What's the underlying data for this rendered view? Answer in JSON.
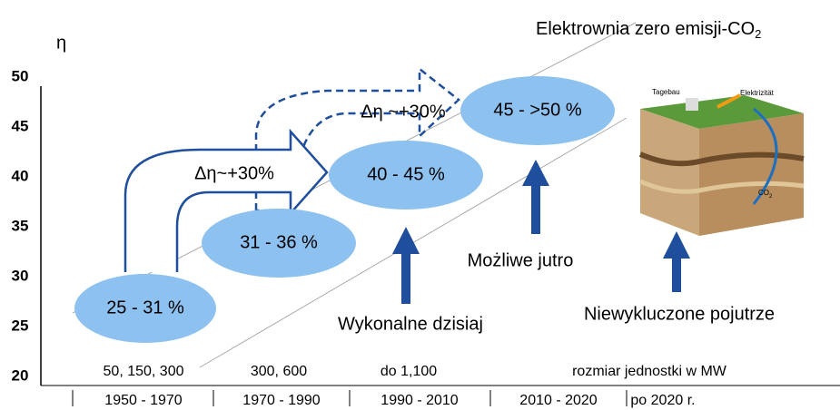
{
  "axis": {
    "label": "η",
    "ticks": [
      "50",
      "45",
      "40",
      "35",
      "30",
      "25",
      "20"
    ]
  },
  "headline": {
    "text": "Elektrownia zero emisji-CO",
    "sub": "2"
  },
  "stages": [
    {
      "label": "25 - 31 %"
    },
    {
      "label": "31 - 36 %"
    },
    {
      "label": "40 - 45 %"
    },
    {
      "label": "45 - >50 %"
    }
  ],
  "gains": [
    "Δη~+30%",
    "Δη ~+30%"
  ],
  "outlooks": [
    "Wykonalne dzisiaj",
    "Możliwe jutro",
    "Niewykluczone pojutrze"
  ],
  "sizes": [
    "50, 150, 300",
    "300, 600",
    "do 1,100",
    "rozmiar jednostki w MW"
  ],
  "periods": [
    "1950 - 1970",
    "1970 - 1990",
    "1990 - 2010",
    "2010 - 2020",
    "po 2020 r."
  ],
  "figure": {
    "labels": [
      "Tagebau",
      "Elektrizität",
      "CO",
      "2"
    ]
  }
}
